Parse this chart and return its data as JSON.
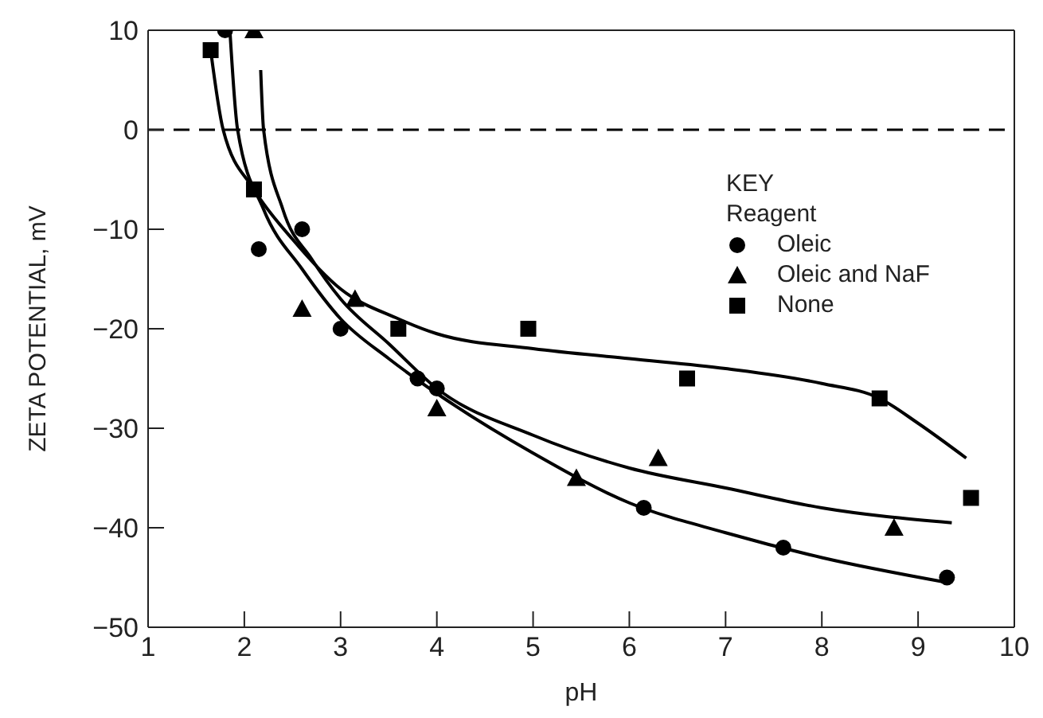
{
  "chart_data": {
    "type": "scatter",
    "xlabel": "pH",
    "ylabel": "ZETA POTENTIAL, mV",
    "legend_title": "KEY\nReagent",
    "legend": "right",
    "xlim": [
      1,
      10
    ],
    "xticks": [
      1,
      2,
      3,
      4,
      5,
      6,
      7,
      8,
      9,
      10
    ],
    "ylim": [
      -50,
      10
    ],
    "yticks": [
      -50,
      -40,
      -30,
      -20,
      -10,
      0,
      10
    ],
    "ref_lines": [
      {
        "axis": "y",
        "value": 0,
        "line_style": "dashed",
        "color": "#000000"
      }
    ],
    "series": [
      {
        "name": "Oleic",
        "marker": "circle",
        "color": "#000000",
        "x": [
          1.8,
          2.15,
          2.6,
          3.0,
          3.8,
          4.0,
          6.15,
          7.6,
          9.3
        ],
        "values": [
          10,
          -12,
          -10,
          -20,
          -25,
          -26,
          -38,
          -42,
          -45
        ]
      },
      {
        "name": "Oleic and NaF",
        "marker": "triangle",
        "color": "#000000",
        "x": [
          2.1,
          2.6,
          3.15,
          4.0,
          5.45,
          6.3,
          8.75
        ],
        "values": [
          10,
          -18,
          -17,
          -28,
          -35,
          -33,
          -40
        ]
      },
      {
        "name": "None",
        "marker": "square",
        "color": "#000000",
        "x": [
          1.65,
          2.1,
          3.6,
          4.95,
          6.6,
          8.6,
          9.55
        ],
        "values": [
          8,
          -6,
          -20,
          -20,
          -25,
          -27,
          -37
        ]
      },
      {
        "type": "line",
        "marker": "none",
        "line_style": "solid",
        "color": "#000000",
        "x": [
          1.85,
          1.93,
          2.2,
          2.6,
          3,
          3.5,
          4,
          5,
          6,
          7,
          8,
          9.3
        ],
        "values": [
          10,
          0,
          -8,
          -14,
          -19,
          -23,
          -26.5,
          -32.5,
          -37.5,
          -40.5,
          -43,
          -45.5
        ]
      },
      {
        "type": "line",
        "marker": "none",
        "line_style": "solid",
        "color": "#000000",
        "x": [
          2.17,
          2.2,
          2.4,
          2.7,
          3,
          3.5,
          4,
          5,
          6,
          7,
          8,
          9.35
        ],
        "values": [
          6,
          0,
          -8,
          -13,
          -17,
          -21.5,
          -26,
          -30.7,
          -34,
          -36,
          -38,
          -39.5
        ]
      },
      {
        "type": "line",
        "marker": "none",
        "line_style": "solid",
        "color": "#000000",
        "x": [
          1.65,
          1.78,
          2.1,
          2.5,
          3,
          3.6,
          4,
          5,
          6,
          7,
          8,
          8.6,
          9,
          9.5
        ],
        "values": [
          8,
          0,
          -6,
          -11,
          -16,
          -19,
          -20.5,
          -22,
          -23,
          -24,
          -25.5,
          -27,
          -29.5,
          -33
        ]
      }
    ]
  }
}
